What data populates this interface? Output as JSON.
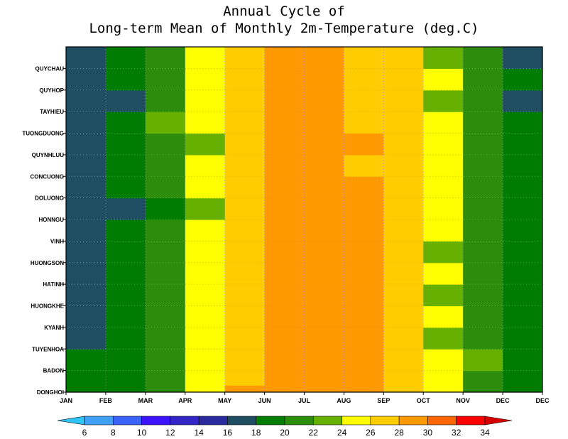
{
  "chart_data": {
    "type": "heatmap",
    "title": [
      "Annual Cycle of",
      "Long-term Mean of Monthly 2m-Temperature (deg.C)"
    ],
    "xlabel": "",
    "ylabel": "",
    "grid": true,
    "x_categories": [
      "JAN",
      "FEB",
      "MAR",
      "APR",
      "MAY",
      "JUN",
      "JUL",
      "AUG",
      "SEP",
      "OCT",
      "NOV",
      "DEC"
    ],
    "y_categories": [
      "DONGHOI",
      "BADON",
      "TUYENHOA",
      "KYANH",
      "HUONGKHE",
      "HATINH",
      "HUONGSON",
      "VINH",
      "HONNGU",
      "DOLUONG",
      "CONCUONG",
      "QUYNHLUU",
      "TUONGDUONG",
      "TAYHIEU",
      "QUYHOP",
      "QUYCHAU"
    ],
    "values": [
      [
        19,
        19,
        21,
        25,
        27,
        29,
        29,
        29,
        27,
        25,
        21,
        19
      ],
      [
        19,
        19,
        21,
        25,
        27,
        29,
        29,
        29,
        27,
        25,
        23,
        19
      ],
      [
        17,
        19,
        21,
        25,
        27,
        29,
        29,
        29,
        27,
        23,
        21,
        19
      ],
      [
        17,
        19,
        21,
        25,
        27,
        29,
        29,
        29,
        27,
        25,
        21,
        19
      ],
      [
        17,
        19,
        21,
        25,
        27,
        29,
        29,
        29,
        27,
        23,
        21,
        19
      ],
      [
        17,
        19,
        21,
        25,
        27,
        29,
        29,
        29,
        27,
        25,
        21,
        19
      ],
      [
        17,
        19,
        21,
        25,
        27,
        29,
        29,
        29,
        27,
        23,
        21,
        19
      ],
      [
        17,
        19,
        21,
        25,
        27,
        29,
        29,
        29,
        27,
        25,
        21,
        19
      ],
      [
        17,
        17,
        19,
        23,
        27,
        29,
        29,
        29,
        27,
        25,
        21,
        19
      ],
      [
        17,
        19,
        21,
        25,
        27,
        29,
        29,
        29,
        27,
        25,
        21,
        19
      ],
      [
        17,
        19,
        21,
        25,
        27,
        29,
        29,
        27,
        27,
        25,
        21,
        19
      ],
      [
        17,
        19,
        21,
        23,
        27,
        29,
        29,
        29,
        27,
        25,
        21,
        19
      ],
      [
        17,
        19,
        23,
        25,
        27,
        29,
        29,
        27,
        27,
        25,
        21,
        19
      ],
      [
        17,
        17,
        21,
        25,
        27,
        29,
        29,
        27,
        27,
        23,
        21,
        17
      ],
      [
        17,
        19,
        21,
        25,
        27,
        29,
        29,
        27,
        27,
        25,
        21,
        19
      ],
      [
        17,
        19,
        21,
        25,
        27,
        29,
        29,
        27,
        27,
        23,
        21,
        17
      ]
    ],
    "partial_cells": [
      {
        "row": "DONGHOI",
        "col": "MAY",
        "value": 29,
        "portion": "lower"
      }
    ],
    "colorbar": {
      "levels": [
        6,
        8,
        10,
        12,
        14,
        16,
        18,
        20,
        22,
        24,
        26,
        28,
        30,
        32,
        34
      ],
      "colors": [
        "#2ec4f3",
        "#3fa0f6",
        "#3c64fb",
        "#3c14fb",
        "#3226c8",
        "#2a2a9e",
        "#1f4e63",
        "#007c00",
        "#2e8c0d",
        "#66b000",
        "#ffff00",
        "#ffcc00",
        "#ff9900",
        "#ff6600",
        "#ff0000",
        "#d60000"
      ]
    }
  }
}
